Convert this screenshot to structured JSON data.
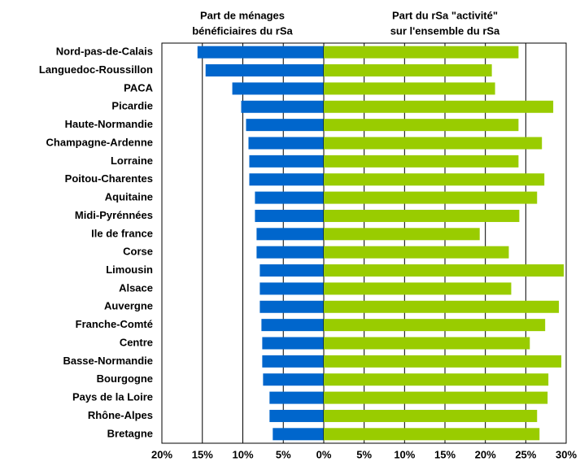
{
  "chart_data": [
    {
      "type": "hbar",
      "title": [
        "Part de ménages",
        "bénéficiaires du rSa"
      ],
      "categories": [
        "Nord-pas-de-Calais",
        "Languedoc-Roussillon",
        "PACA",
        "Picardie",
        "Haute-Normandie",
        "Champagne-Ardenne",
        "Lorraine",
        "Poitou-Charentes",
        "Aquitaine",
        "Midi-Pyrénnées",
        "Ile de france",
        "Corse",
        "Limousin",
        "Alsace",
        "Auvergne",
        "Franche-Comté",
        "Centre",
        "Basse-Normandie",
        "Bourgogne",
        "Pays de la Loire",
        "Rhône-Alpes",
        "Bretagne"
      ],
      "values": [
        15.6,
        14.6,
        11.3,
        10.2,
        9.6,
        9.3,
        9.2,
        9.2,
        8.5,
        8.5,
        8.3,
        8.3,
        7.9,
        7.9,
        7.9,
        7.7,
        7.6,
        7.6,
        7.5,
        6.7,
        6.7,
        6.3
      ],
      "color": "#0066cc",
      "xlim": [
        20,
        0
      ],
      "xticks": [
        {
          "value": 20,
          "label": "20%"
        },
        {
          "value": 15,
          "label": "15%"
        },
        {
          "value": 10,
          "label": "10%"
        },
        {
          "value": 5,
          "label": "5%"
        }
      ],
      "grid": true
    },
    {
      "type": "hbar",
      "title": [
        "Part du rSa \"activité\"",
        "sur l'ensemble du rSa"
      ],
      "values": [
        24.1,
        20.8,
        21.2,
        28.4,
        24.1,
        27.0,
        24.1,
        27.3,
        26.4,
        24.2,
        19.3,
        22.9,
        29.7,
        23.2,
        29.1,
        27.4,
        25.5,
        29.4,
        27.8,
        27.7,
        26.4,
        26.7
      ],
      "color": "#99cc00",
      "xlim": [
        0,
        30
      ],
      "xticks": [
        {
          "value": 0,
          "label": "0%"
        },
        {
          "value": 5,
          "label": "5%"
        },
        {
          "value": 10,
          "label": "10%"
        },
        {
          "value": 15,
          "label": "15%"
        },
        {
          "value": 20,
          "label": "20%"
        },
        {
          "value": 25,
          "label": "25%"
        },
        {
          "value": 30,
          "label": "30%"
        }
      ],
      "grid": true
    }
  ]
}
